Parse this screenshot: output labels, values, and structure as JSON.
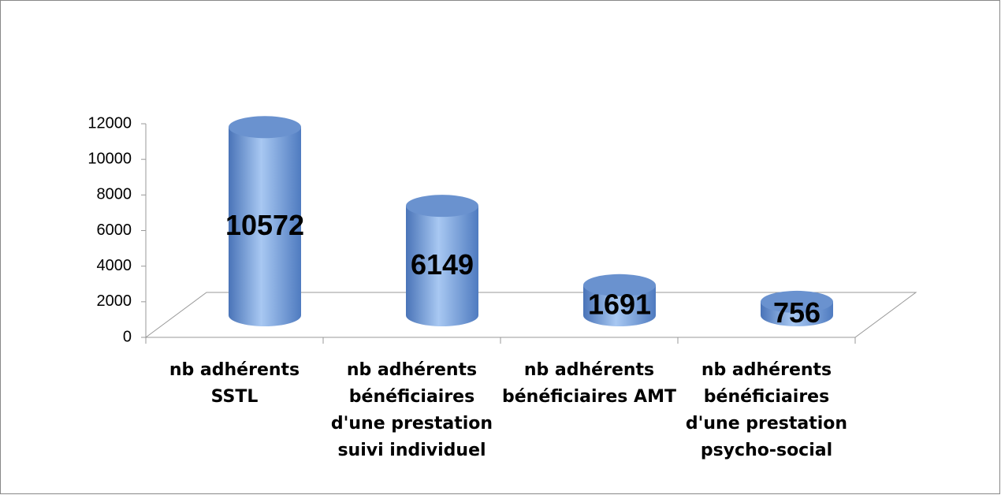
{
  "chart_data": {
    "type": "bar3d",
    "categories": [
      "nb adhérents SSTL",
      "nb adhérents bénéficiaires d'une prestation suivi individuel",
      "nb adhérents bénéficiaires AMT",
      "nb adhérents bénéficiaires d'une prestation psycho-social"
    ],
    "values": [
      10572,
      6149,
      1691,
      756
    ],
    "color": "#7ea6e0",
    "ylim": [
      0,
      12000
    ],
    "yticks": [
      0,
      2000,
      4000,
      6000,
      8000,
      10000,
      12000
    ]
  }
}
